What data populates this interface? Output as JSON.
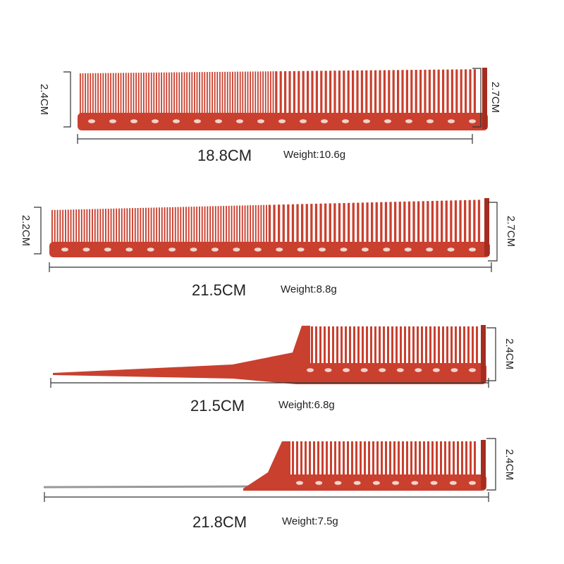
{
  "combs": [
    {
      "length": "18.8CM",
      "weight": "Weight:10.6g",
      "height_left": "2.4CM",
      "height_right": "2.7CM"
    },
    {
      "length": "21.5CM",
      "weight": "Weight:8.8g",
      "height_left": "2.2CM",
      "height_right": "2.7CM"
    },
    {
      "length": "21.5CM",
      "weight": "Weight:6.8g",
      "height_right": "2.4CM"
    },
    {
      "length": "21.8CM",
      "weight": "Weight:7.5g",
      "height_right": "2.4CM"
    }
  ]
}
